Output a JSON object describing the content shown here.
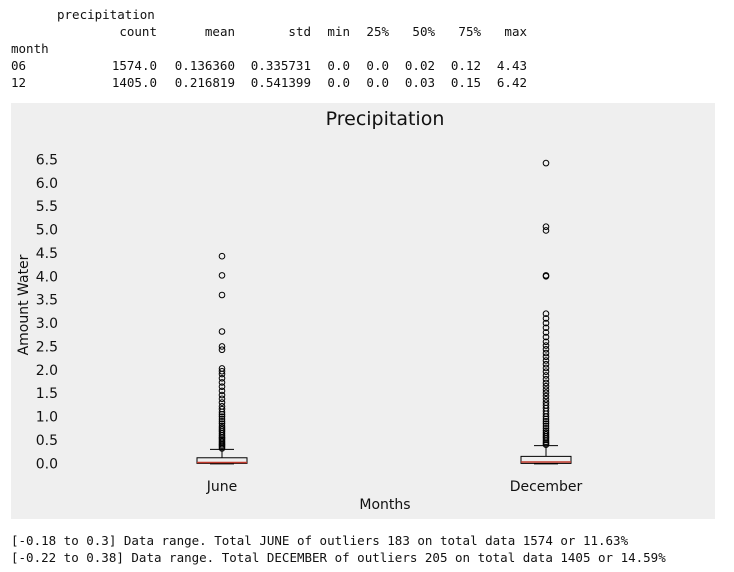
{
  "table": {
    "top_header": "precipitation",
    "columns": [
      "count",
      "mean",
      "std",
      "min",
      "25%",
      "50%",
      "75%",
      "max"
    ],
    "index_name": "month",
    "rows": [
      {
        "label": "06",
        "values": [
          "1574.0",
          "0.136360",
          "0.335731",
          "0.0",
          "0.0",
          "0.02",
          "0.12",
          "4.43"
        ]
      },
      {
        "label": "12",
        "values": [
          "1405.0",
          "0.216819",
          "0.541399",
          "0.0",
          "0.0",
          "0.03",
          "0.15",
          "6.42"
        ]
      }
    ]
  },
  "chart_data": {
    "type": "boxplot",
    "title": "Precipitation",
    "xlabel": "Months",
    "ylabel": "Amount Water",
    "ylim": [
      -0.12,
      6.85
    ],
    "yticks": [
      "0.0",
      "0.5",
      "1.0",
      "1.5",
      "2.0",
      "2.5",
      "3.0",
      "3.5",
      "4.0",
      "4.5",
      "5.0",
      "5.5",
      "6.0",
      "6.5"
    ],
    "categories": [
      "June",
      "December"
    ],
    "boxes": [
      {
        "name": "June",
        "whisker_low": 0.0,
        "q1": 0.0,
        "median": 0.02,
        "q3": 0.12,
        "whisker_high": 0.3,
        "outliers": [
          0.32,
          0.35,
          0.38,
          0.41,
          0.44,
          0.47,
          0.5,
          0.53,
          0.56,
          0.6,
          0.64,
          0.68,
          0.72,
          0.76,
          0.8,
          0.85,
          0.9,
          0.95,
          1.0,
          1.05,
          1.1,
          1.16,
          1.22,
          1.3,
          1.38,
          1.46,
          1.55,
          1.64,
          1.73,
          1.82,
          1.91,
          1.97,
          2.03,
          2.43,
          2.5,
          2.82,
          3.6,
          4.02,
          4.43
        ]
      },
      {
        "name": "December",
        "whisker_low": 0.0,
        "q1": 0.0,
        "median": 0.03,
        "q3": 0.15,
        "whisker_high": 0.38,
        "outliers": [
          0.4,
          0.43,
          0.46,
          0.5,
          0.54,
          0.58,
          0.62,
          0.66,
          0.7,
          0.75,
          0.8,
          0.85,
          0.9,
          0.95,
          1.0,
          1.06,
          1.12,
          1.18,
          1.24,
          1.3,
          1.37,
          1.44,
          1.51,
          1.58,
          1.65,
          1.72,
          1.8,
          1.88,
          1.96,
          2.04,
          2.12,
          2.2,
          2.28,
          2.36,
          2.44,
          2.52,
          2.6,
          2.7,
          2.8,
          2.9,
          3.0,
          3.1,
          3.2,
          4.0,
          4.02,
          4.98,
          5.06,
          6.42
        ]
      }
    ],
    "colors": {
      "box": "#000000",
      "median": "#c0392b",
      "outlier": "#000000",
      "background": "#efefef"
    }
  },
  "footer_lines": [
    "[-0.18 to 0.3] Data range. Total JUNE of outliers 183 on total data 1574 or 11.63%",
    "[-0.22 to 0.38] Data range. Total DECEMBER of outliers 205 on total data 1405 or 14.59%"
  ]
}
